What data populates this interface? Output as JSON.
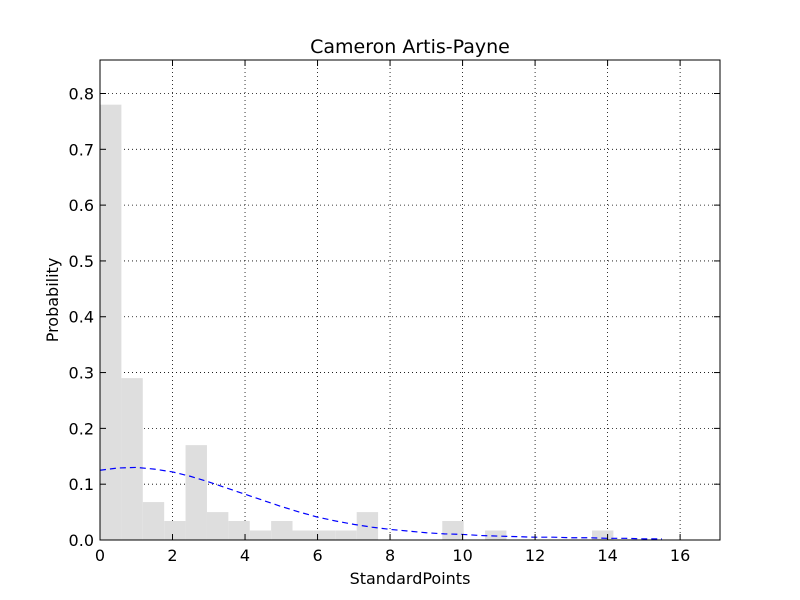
{
  "chart_data": {
    "type": "bar",
    "title": "Cameron Artis-Payne",
    "xlabel": "StandardPoints",
    "ylabel": "Probability",
    "xlim": [
      0,
      17.1
    ],
    "ylim": [
      0,
      0.86
    ],
    "xticks": [
      0,
      2,
      4,
      6,
      8,
      10,
      12,
      14,
      16
    ],
    "yticks": [
      0.0,
      0.1,
      0.2,
      0.3,
      0.4,
      0.5,
      0.6,
      0.7,
      0.8
    ],
    "xtick_labels": [
      "0",
      "2",
      "4",
      "6",
      "8",
      "10",
      "12",
      "14",
      "16"
    ],
    "ytick_labels": [
      "0.0",
      "0.1",
      "0.2",
      "0.3",
      "0.4",
      "0.5",
      "0.6",
      "0.7",
      "0.8"
    ],
    "grid": true,
    "colors": {
      "bars": "#dedede",
      "curve": "#0000ff"
    },
    "histogram": {
      "bin_width": 0.59,
      "bins": [
        {
          "x0": 0.0,
          "value": 0.78
        },
        {
          "x0": 0.59,
          "value": 0.29
        },
        {
          "x0": 1.18,
          "value": 0.068
        },
        {
          "x0": 1.77,
          "value": 0.034
        },
        {
          "x0": 2.36,
          "value": 0.17
        },
        {
          "x0": 2.95,
          "value": 0.05
        },
        {
          "x0": 3.54,
          "value": 0.034
        },
        {
          "x0": 4.13,
          "value": 0.017
        },
        {
          "x0": 4.72,
          "value": 0.034
        },
        {
          "x0": 5.31,
          "value": 0.017
        },
        {
          "x0": 5.9,
          "value": 0.017
        },
        {
          "x0": 6.49,
          "value": 0.017
        },
        {
          "x0": 7.08,
          "value": 0.05
        },
        {
          "x0": 7.67,
          "value": 0.0
        },
        {
          "x0": 8.26,
          "value": 0.0
        },
        {
          "x0": 8.85,
          "value": 0.0
        },
        {
          "x0": 9.44,
          "value": 0.034
        },
        {
          "x0": 10.03,
          "value": 0.0
        },
        {
          "x0": 10.62,
          "value": 0.017
        },
        {
          "x0": 11.21,
          "value": 0.0
        },
        {
          "x0": 11.8,
          "value": 0.0
        },
        {
          "x0": 12.39,
          "value": 0.0
        },
        {
          "x0": 12.98,
          "value": 0.0
        },
        {
          "x0": 13.57,
          "value": 0.017
        }
      ]
    },
    "curve": {
      "style": "dashed",
      "x": [
        0,
        0.5,
        1,
        1.5,
        2,
        2.5,
        3,
        3.5,
        4,
        4.5,
        5,
        5.5,
        6,
        6.5,
        7,
        7.5,
        8,
        8.5,
        9,
        9.5,
        10,
        10.5,
        11,
        11.5,
        12,
        12.5,
        13,
        13.5,
        14,
        14.5,
        15,
        15.5
      ],
      "y": [
        0.125,
        0.129,
        0.13,
        0.127,
        0.122,
        0.114,
        0.104,
        0.093,
        0.082,
        0.071,
        0.06,
        0.05,
        0.041,
        0.034,
        0.028,
        0.023,
        0.019,
        0.016,
        0.013,
        0.011,
        0.01,
        0.008,
        0.007,
        0.006,
        0.005,
        0.005,
        0.004,
        0.004,
        0.003,
        0.003,
        0.002,
        0.002
      ]
    }
  }
}
